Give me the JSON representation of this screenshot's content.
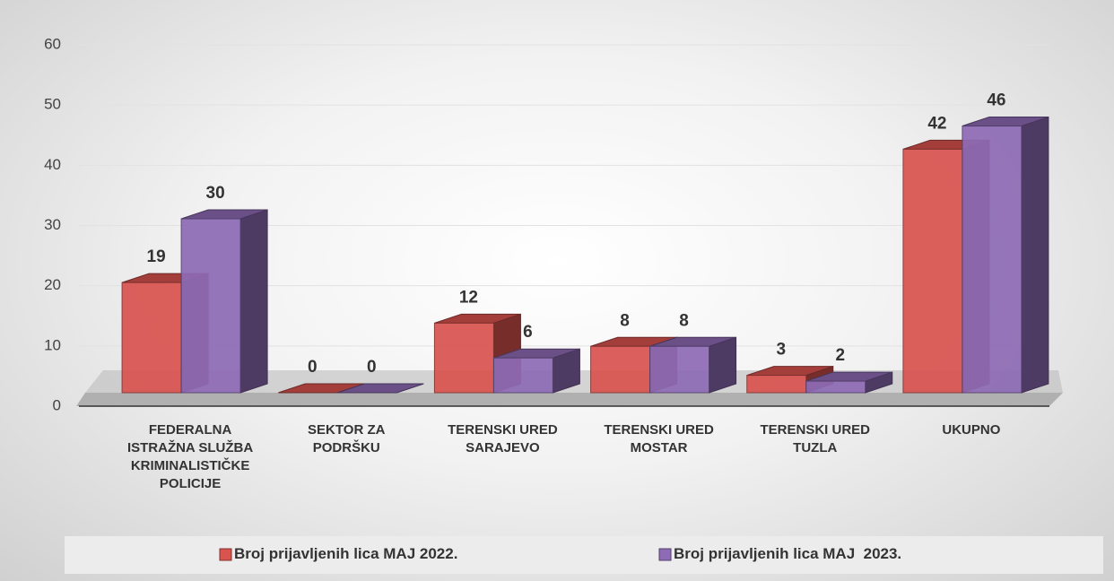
{
  "chart_data": {
    "type": "bar3d",
    "categories": [
      "FEDERALNA ISTRAŽNA SLUŽBA KRIMINALISTIČKE POLICIJE",
      "SEKTOR ZA PODRŠKU",
      "TERENSKI URED SARAJEVO",
      "TERENSKI URED MOSTAR",
      "TERENSKI URED TUZLA",
      "UKUPNO"
    ],
    "series": [
      {
        "name": "Broj prijavljenih lica MAJ 2022.",
        "color": "#d9534f",
        "values": [
          19,
          0,
          12,
          8,
          3,
          42
        ]
      },
      {
        "name": "Broj prijavljenih lica MAJ  2023.",
        "color": "#8e6bb5",
        "values": [
          30,
          0,
          6,
          8,
          2,
          46
        ]
      }
    ],
    "ylim": [
      0,
      60
    ],
    "yticks": [
      0,
      10,
      20,
      30,
      40,
      50,
      60
    ],
    "grid": true,
    "legend": "bottom"
  }
}
